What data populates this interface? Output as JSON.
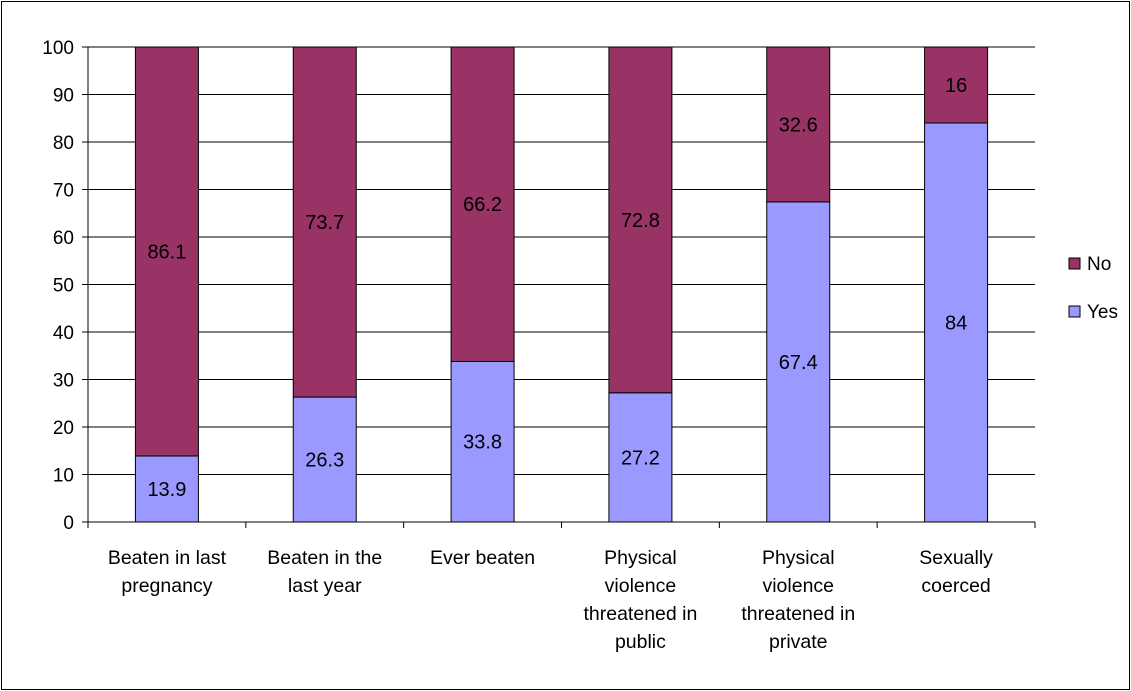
{
  "chart_data": {
    "type": "bar",
    "stacked": true,
    "categories": [
      [
        "Beaten in last",
        "pregnancy"
      ],
      [
        "Beaten in the",
        "last year"
      ],
      [
        "Ever beaten"
      ],
      [
        "Physical",
        "violence",
        "threatened in",
        "public"
      ],
      [
        "Physical",
        "violence",
        "threatened in",
        "private"
      ],
      [
        "Sexually",
        "coerced"
      ]
    ],
    "series": [
      {
        "name": "Yes",
        "values": [
          13.9,
          26.3,
          33.8,
          27.2,
          67.4,
          84
        ],
        "labels": [
          "13.9",
          "26.3",
          "33.8",
          "27.2",
          "67.4",
          "84"
        ],
        "color": "#9999FF"
      },
      {
        "name": "No",
        "values": [
          86.1,
          73.7,
          66.2,
          72.8,
          32.6,
          16
        ],
        "labels": [
          "86.1",
          "73.7",
          "66.2",
          "72.8",
          "32.6",
          "16"
        ],
        "color": "#993366"
      }
    ],
    "legend_order": [
      "No",
      "Yes"
    ],
    "legend_position": "right",
    "ylim": [
      0,
      100
    ],
    "yticks": [
      "0",
      "10",
      "20",
      "30",
      "40",
      "50",
      "60",
      "70",
      "80",
      "90",
      "100"
    ],
    "grid": true,
    "title": "",
    "xlabel": "",
    "ylabel": ""
  }
}
